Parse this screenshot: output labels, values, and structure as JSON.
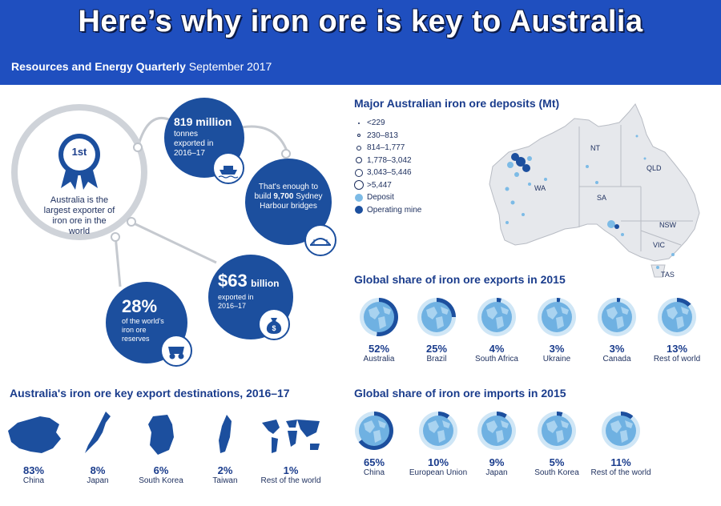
{
  "header": {
    "title": "Here’s why iron ore is key to Australia",
    "subtitle_bold": "Resources and Energy Quarterly",
    "subtitle_rest": "September 2017"
  },
  "left": {
    "rank": "1st",
    "rank_text": "Australia is the largest exporter of iron ore in the world",
    "exported_big": "819 million",
    "exported_small": "tonnes exported in 2016–17",
    "bridges_text1": "That's enough to build",
    "bridges_num": "9,700",
    "bridges_text2": "Sydney Harbour bridges",
    "value_big": "$63",
    "value_unit": "billion",
    "value_small": "exported in 2016–17",
    "reserves_big": "28%",
    "reserves_small": "of the world's iron ore reserves"
  },
  "map": {
    "title": "Major Australian iron ore deposits (Mt)",
    "legend": [
      "<229",
      "230–813",
      "814–1,777",
      "1,778–3,042",
      "3,043–5,446",
      ">5,447",
      "Deposit",
      "Operating mine"
    ],
    "states": [
      "NT",
      "QLD",
      "WA",
      "SA",
      "NSW",
      "VIC",
      "TAS"
    ],
    "colors": {
      "deposit": "#7dbbe6",
      "mine": "#1c4f9e",
      "land": "#e6e8ec"
    }
  },
  "exports_share": {
    "title": "Global share of iron ore exports in 2015",
    "items": [
      {
        "pct": "52%",
        "label": "Australia",
        "value": 52
      },
      {
        "pct": "25%",
        "label": "Brazil",
        "value": 25
      },
      {
        "pct": "4%",
        "label": "South Africa",
        "value": 4
      },
      {
        "pct": "3%",
        "label": "Ukraine",
        "value": 3
      },
      {
        "pct": "3%",
        "label": "Canada",
        "value": 3
      },
      {
        "pct": "13%",
        "label": "Rest of world",
        "value": 13
      }
    ]
  },
  "imports_share": {
    "title": "Global share of iron ore imports in 2015",
    "items": [
      {
        "pct": "65%",
        "label": "China",
        "value": 65
      },
      {
        "pct": "10%",
        "label": "European Union",
        "value": 10
      },
      {
        "pct": "9%",
        "label": "Japan",
        "value": 9
      },
      {
        "pct": "5%",
        "label": "South Korea",
        "value": 5
      },
      {
        "pct": "11%",
        "label": "Rest of the world",
        "value": 11
      }
    ]
  },
  "destinations": {
    "title": "Australia's iron ore key export destinations, 2016–17",
    "items": [
      {
        "pct": "83%",
        "label": "China"
      },
      {
        "pct": "8%",
        "label": "Japan"
      },
      {
        "pct": "6%",
        "label": "South Korea"
      },
      {
        "pct": "2%",
        "label": "Taiwan"
      },
      {
        "pct": "1%",
        "label": "Rest of the world"
      }
    ]
  }
}
